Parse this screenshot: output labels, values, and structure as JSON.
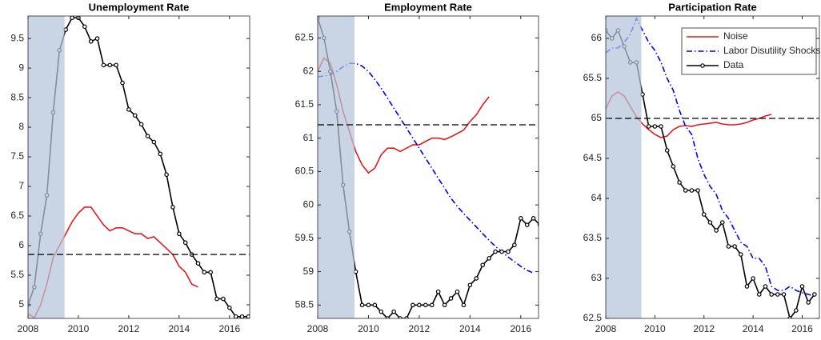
{
  "chart_data": [
    {
      "type": "line",
      "title": "Unemployment Rate",
      "xlim": [
        2008,
        2016.8
      ],
      "xticks": [
        2008,
        2010,
        2012,
        2014,
        2016
      ],
      "ylim": [
        4.77,
        9.88
      ],
      "yticks": [
        5,
        5.5,
        6,
        6.5,
        7,
        7.5,
        8,
        8.5,
        9,
        9.5
      ],
      "shaded_region": [
        2008,
        2009.45
      ],
      "shade_color": "#b4c4d9",
      "hline": 5.85,
      "series": [
        {
          "color": "#e31a1c",
          "dash": "solid",
          "marker": "none",
          "x": [
            2008,
            2008.25,
            2008.5,
            2008.75,
            2009,
            2009.25,
            2009.5,
            2009.75,
            2010,
            2010.25,
            2010.5,
            2010.75,
            2011,
            2011.25,
            2011.5,
            2011.75,
            2012,
            2012.25,
            2012.5,
            2012.75,
            2013,
            2013.25,
            2013.5,
            2013.75,
            2014,
            2014.25,
            2014.5,
            2014.75
          ],
          "values": [
            4.85,
            4.78,
            5.0,
            5.35,
            5.8,
            6.0,
            6.2,
            6.4,
            6.55,
            6.65,
            6.65,
            6.5,
            6.35,
            6.25,
            6.3,
            6.3,
            6.25,
            6.2,
            6.2,
            6.12,
            6.15,
            6.05,
            5.95,
            5.85,
            5.65,
            5.55,
            5.35,
            5.3
          ]
        },
        {
          "color": "#000000",
          "dash": "solid",
          "marker": "o",
          "x": [
            2008,
            2008.25,
            2008.5,
            2008.75,
            2009,
            2009.25,
            2009.5,
            2009.75,
            2010,
            2010.25,
            2010.5,
            2010.75,
            2011,
            2011.25,
            2011.5,
            2011.75,
            2012,
            2012.25,
            2012.5,
            2012.75,
            2013,
            2013.25,
            2013.5,
            2013.75,
            2014,
            2014.25,
            2014.5,
            2014.75,
            2015,
            2015.25,
            2015.5,
            2015.75,
            2016,
            2016.25,
            2016.5,
            2016.75
          ],
          "values": [
            5.0,
            5.3,
            6.2,
            6.85,
            8.25,
            9.3,
            9.65,
            9.85,
            9.85,
            9.7,
            9.45,
            9.5,
            9.05,
            9.05,
            9.05,
            8.75,
            8.3,
            8.2,
            8.05,
            7.85,
            7.75,
            7.55,
            7.2,
            6.65,
            6.2,
            6.05,
            5.85,
            5.7,
            5.55,
            5.55,
            5.1,
            5.1,
            4.95,
            4.8,
            4.8,
            4.8
          ]
        }
      ]
    },
    {
      "type": "line",
      "title": "Employment Rate",
      "xlim": [
        2008,
        2016.7
      ],
      "xticks": [
        2008,
        2010,
        2012,
        2014,
        2016
      ],
      "ylim": [
        58.3,
        62.83
      ],
      "yticks": [
        58.5,
        59,
        59.5,
        60,
        60.5,
        61,
        61.5,
        62,
        62.5
      ],
      "shaded_region": [
        2008,
        2009.45
      ],
      "shade_color": "#b4c4d9",
      "hline": 61.2,
      "series": [
        {
          "color": "#e31a1c",
          "dash": "solid",
          "marker": "none",
          "x": [
            2008,
            2008.25,
            2008.5,
            2008.75,
            2009,
            2009.25,
            2009.5,
            2009.75,
            2010,
            2010.25,
            2010.5,
            2010.75,
            2011,
            2011.25,
            2011.5,
            2011.75,
            2012,
            2012.25,
            2012.5,
            2012.75,
            2013,
            2013.25,
            2013.5,
            2013.75,
            2014,
            2014.25,
            2014.5,
            2014.75
          ],
          "values": [
            62.0,
            62.2,
            62.12,
            61.8,
            61.4,
            61.1,
            60.8,
            60.6,
            60.48,
            60.55,
            60.75,
            60.85,
            60.85,
            60.8,
            60.85,
            60.9,
            60.9,
            60.95,
            61.0,
            61.0,
            60.98,
            61.02,
            61.07,
            61.12,
            61.25,
            61.35,
            61.5,
            61.62
          ]
        },
        {
          "color": "#0000ff",
          "dash": "dashdot",
          "marker": "none",
          "x": [
            2008,
            2008.25,
            2008.5,
            2008.75,
            2009,
            2009.25,
            2009.5,
            2009.75,
            2010,
            2010.25,
            2010.5,
            2010.75,
            2011,
            2011.25,
            2011.5,
            2011.75,
            2012,
            2012.25,
            2012.5,
            2012.75,
            2013,
            2013.25,
            2013.5,
            2013.75,
            2014,
            2014.25,
            2014.5,
            2014.75,
            2015,
            2015.25,
            2015.5,
            2015.75,
            2016,
            2016.25,
            2016.5
          ],
          "values": [
            61.92,
            61.93,
            61.95,
            62.0,
            62.07,
            62.12,
            62.12,
            62.08,
            62.0,
            61.88,
            61.75,
            61.6,
            61.45,
            61.3,
            61.15,
            61.0,
            60.85,
            60.7,
            60.55,
            60.4,
            60.25,
            60.1,
            59.98,
            59.87,
            59.77,
            59.67,
            59.57,
            59.47,
            59.38,
            59.3,
            59.22,
            59.15,
            59.08,
            59.02,
            58.98
          ]
        },
        {
          "color": "#000000",
          "dash": "solid",
          "marker": "o",
          "x": [
            2008,
            2008.25,
            2008.5,
            2008.75,
            2009,
            2009.25,
            2009.5,
            2009.75,
            2010,
            2010.25,
            2010.5,
            2010.75,
            2011,
            2011.25,
            2011.5,
            2011.75,
            2012,
            2012.25,
            2012.5,
            2012.75,
            2013,
            2013.25,
            2013.5,
            2013.75,
            2014,
            2014.25,
            2014.5,
            2014.75,
            2015,
            2015.25,
            2015.5,
            2015.75,
            2016,
            2016.25,
            2016.5,
            2016.75
          ],
          "values": [
            62.8,
            62.5,
            62.0,
            61.4,
            60.3,
            59.6,
            59.0,
            58.5,
            58.5,
            58.5,
            58.4,
            58.3,
            58.4,
            58.3,
            58.3,
            58.5,
            58.5,
            58.5,
            58.5,
            58.7,
            58.5,
            58.6,
            58.7,
            58.5,
            58.8,
            58.9,
            59.1,
            59.2,
            59.3,
            59.3,
            59.3,
            59.4,
            59.8,
            59.7,
            59.8,
            59.7
          ]
        }
      ]
    },
    {
      "type": "line",
      "title": "Participation Rate",
      "xlim": [
        2008,
        2016.7
      ],
      "xticks": [
        2008,
        2010,
        2012,
        2014,
        2016
      ],
      "ylim": [
        62.5,
        66.28
      ],
      "yticks": [
        62.5,
        63,
        63.5,
        64,
        64.5,
        65,
        65.5,
        66
      ],
      "shaded_region": [
        2008,
        2009.45
      ],
      "shade_color": "#b4c4d9",
      "hline": 65,
      "legend": "upper right",
      "series": [
        {
          "name": "Noise",
          "color": "#e31a1c",
          "dash": "solid",
          "marker": "none",
          "x": [
            2008,
            2008.25,
            2008.5,
            2008.75,
            2009,
            2009.25,
            2009.5,
            2009.75,
            2010,
            2010.25,
            2010.5,
            2010.75,
            2011,
            2011.25,
            2011.5,
            2011.75,
            2012,
            2012.25,
            2012.5,
            2012.75,
            2013,
            2013.25,
            2013.5,
            2013.75,
            2014,
            2014.25,
            2014.5,
            2014.75
          ],
          "values": [
            65.12,
            65.28,
            65.33,
            65.28,
            65.15,
            65.02,
            64.93,
            64.86,
            64.8,
            64.76,
            64.78,
            64.86,
            64.9,
            64.91,
            64.9,
            64.92,
            64.93,
            64.94,
            64.95,
            64.93,
            64.92,
            64.92,
            64.93,
            64.95,
            64.98,
            65.0,
            65.03,
            65.05
          ]
        },
        {
          "name": "Labor Disutility Shocks",
          "color": "#0000ff",
          "dash": "dashdot",
          "marker": "none",
          "x": [
            2008,
            2008.25,
            2008.5,
            2008.75,
            2009,
            2009.25,
            2009.5,
            2009.75,
            2010,
            2010.25,
            2010.5,
            2010.75,
            2011,
            2011.25,
            2011.5,
            2011.75,
            2012,
            2012.25,
            2012.5,
            2012.75,
            2013,
            2013.25,
            2013.5,
            2013.75,
            2014,
            2014.25,
            2014.5,
            2014.75,
            2015,
            2015.25,
            2015.5,
            2015.75,
            2016,
            2016.25,
            2016.5
          ],
          "values": [
            65.82,
            65.88,
            65.88,
            65.95,
            66.05,
            66.25,
            66.1,
            65.95,
            65.85,
            65.7,
            65.5,
            65.35,
            65.1,
            64.9,
            64.8,
            64.5,
            64.3,
            64.15,
            64.05,
            63.85,
            63.75,
            63.6,
            63.45,
            63.4,
            63.25,
            63.25,
            63.15,
            62.9,
            62.85,
            62.85,
            62.9,
            62.85,
            62.82,
            62.8,
            62.78
          ]
        },
        {
          "name": "Data",
          "color": "#000000",
          "dash": "solid",
          "marker": "o",
          "x": [
            2008,
            2008.25,
            2008.5,
            2008.75,
            2009,
            2009.25,
            2009.5,
            2009.75,
            2010,
            2010.25,
            2010.5,
            2010.75,
            2011,
            2011.25,
            2011.5,
            2011.75,
            2012,
            2012.25,
            2012.5,
            2012.75,
            2013,
            2013.25,
            2013.5,
            2013.75,
            2014,
            2014.25,
            2014.5,
            2014.75,
            2015,
            2015.25,
            2015.5,
            2015.75,
            2016,
            2016.25,
            2016.5
          ],
          "values": [
            66.1,
            66.0,
            66.1,
            65.9,
            65.7,
            65.7,
            65.3,
            64.9,
            64.9,
            64.9,
            64.6,
            64.4,
            64.2,
            64.1,
            64.1,
            64.1,
            63.8,
            63.7,
            63.6,
            63.7,
            63.4,
            63.4,
            63.3,
            62.9,
            63.0,
            62.8,
            62.9,
            62.8,
            62.8,
            62.8,
            62.5,
            62.6,
            62.9,
            62.7,
            62.8
          ]
        }
      ]
    }
  ]
}
